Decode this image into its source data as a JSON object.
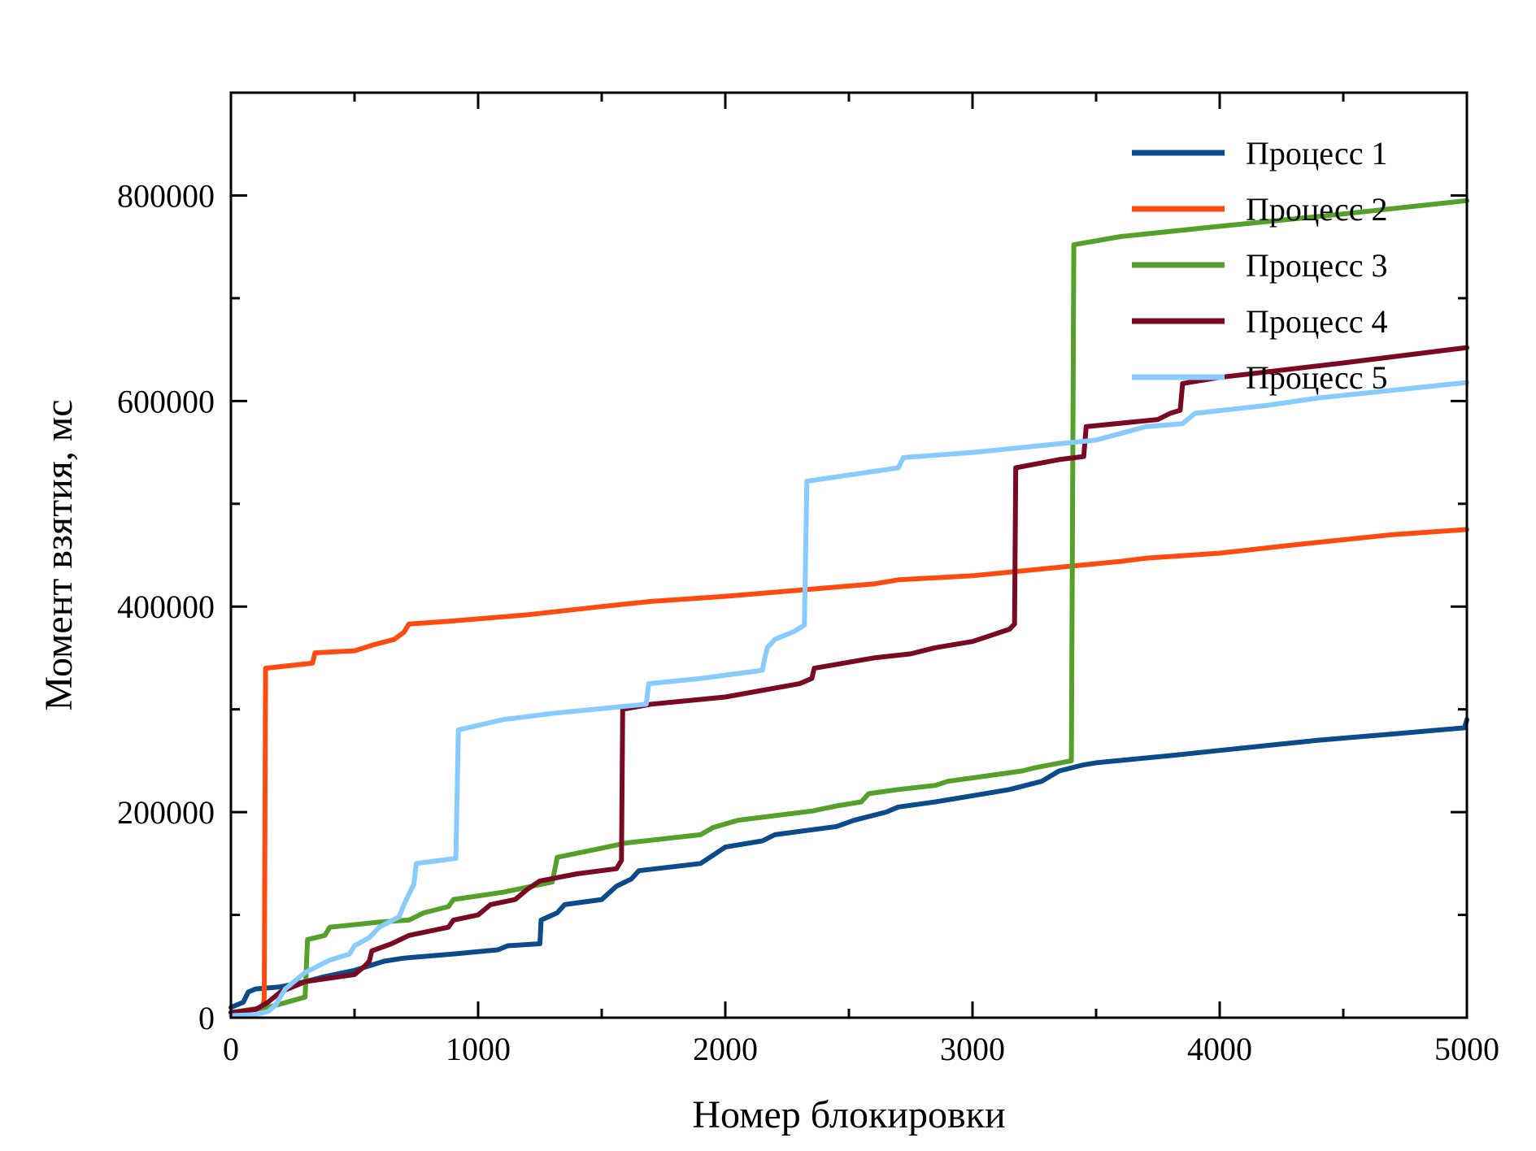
{
  "chart_data": {
    "type": "line",
    "title": "",
    "xlabel": "Номер блокировки",
    "ylabel": "Момент взятия, мс",
    "xlim": [
      0,
      5000
    ],
    "ylim": [
      0,
      900000
    ],
    "xticks": [
      0,
      1000,
      2000,
      3000,
      4000,
      5000
    ],
    "xtick_labels": [
      "0",
      "1000",
      "2000",
      "3000",
      "4000",
      "5000"
    ],
    "xminor": [
      500,
      1500,
      2500,
      3500,
      4500
    ],
    "yticks": [
      0,
      200000,
      400000,
      600000,
      800000
    ],
    "ytick_labels": [
      "0",
      "200000",
      "400000",
      "600000",
      "800000"
    ],
    "yminor": [
      100000,
      300000,
      500000,
      700000
    ],
    "grid": false,
    "legend_position": "top-right",
    "series": [
      {
        "name": "Процесс 1",
        "color": "#0b4a8b",
        "points": [
          [
            0,
            10000
          ],
          [
            50,
            15000
          ],
          [
            70,
            25000
          ],
          [
            100,
            28000
          ],
          [
            200,
            30000
          ],
          [
            300,
            35000
          ],
          [
            380,
            40000
          ],
          [
            500,
            46000
          ],
          [
            620,
            55000
          ],
          [
            700,
            58000
          ],
          [
            900,
            62000
          ],
          [
            1080,
            66000
          ],
          [
            1120,
            70000
          ],
          [
            1250,
            72000
          ],
          [
            1255,
            95000
          ],
          [
            1320,
            102000
          ],
          [
            1350,
            110000
          ],
          [
            1500,
            115000
          ],
          [
            1560,
            128000
          ],
          [
            1620,
            135000
          ],
          [
            1650,
            143000
          ],
          [
            1900,
            150000
          ],
          [
            1950,
            158000
          ],
          [
            2000,
            166000
          ],
          [
            2150,
            172000
          ],
          [
            2200,
            178000
          ],
          [
            2450,
            186000
          ],
          [
            2520,
            192000
          ],
          [
            2650,
            200000
          ],
          [
            2700,
            205000
          ],
          [
            2850,
            210000
          ],
          [
            3000,
            216000
          ],
          [
            3150,
            222000
          ],
          [
            3280,
            230000
          ],
          [
            3350,
            240000
          ],
          [
            3450,
            246000
          ],
          [
            3500,
            248000
          ],
          [
            3800,
            255000
          ],
          [
            4000,
            260000
          ],
          [
            4200,
            265000
          ],
          [
            4400,
            270000
          ],
          [
            4700,
            276000
          ],
          [
            4990,
            282000
          ],
          [
            5000,
            290000
          ]
        ]
      },
      {
        "name": "Процесс 2",
        "color": "#ff4a10",
        "points": [
          [
            0,
            5000
          ],
          [
            130,
            10000
          ],
          [
            135,
            20000
          ],
          [
            140,
            340000
          ],
          [
            330,
            345000
          ],
          [
            340,
            355000
          ],
          [
            500,
            357000
          ],
          [
            580,
            363000
          ],
          [
            660,
            368000
          ],
          [
            700,
            375000
          ],
          [
            720,
            383000
          ],
          [
            900,
            386000
          ],
          [
            1200,
            392000
          ],
          [
            1500,
            400000
          ],
          [
            1700,
            405000
          ],
          [
            2000,
            410000
          ],
          [
            2300,
            416000
          ],
          [
            2600,
            422000
          ],
          [
            2700,
            426000
          ],
          [
            3000,
            430000
          ],
          [
            3300,
            437000
          ],
          [
            3600,
            444000
          ],
          [
            3700,
            447000
          ],
          [
            4000,
            452000
          ],
          [
            4300,
            460000
          ],
          [
            4500,
            465000
          ],
          [
            4700,
            470000
          ],
          [
            5000,
            475000
          ]
        ]
      },
      {
        "name": "Процесс 3",
        "color": "#55a02a",
        "points": [
          [
            0,
            5000
          ],
          [
            150,
            10000
          ],
          [
            300,
            20000
          ],
          [
            310,
            76000
          ],
          [
            380,
            80000
          ],
          [
            400,
            88000
          ],
          [
            600,
            93000
          ],
          [
            720,
            95000
          ],
          [
            780,
            102000
          ],
          [
            880,
            108000
          ],
          [
            900,
            115000
          ],
          [
            1100,
            122000
          ],
          [
            1300,
            132000
          ],
          [
            1320,
            156000
          ],
          [
            1500,
            165000
          ],
          [
            1600,
            170000
          ],
          [
            1900,
            178000
          ],
          [
            1950,
            185000
          ],
          [
            2050,
            192000
          ],
          [
            2150,
            195000
          ],
          [
            2350,
            201000
          ],
          [
            2450,
            206000
          ],
          [
            2550,
            210000
          ],
          [
            2580,
            218000
          ],
          [
            2700,
            222000
          ],
          [
            2850,
            226000
          ],
          [
            2900,
            230000
          ],
          [
            3050,
            235000
          ],
          [
            3200,
            240000
          ],
          [
            3250,
            243000
          ],
          [
            3400,
            250000
          ],
          [
            3410,
            752000
          ],
          [
            3600,
            760000
          ],
          [
            4000,
            770000
          ],
          [
            4500,
            782000
          ],
          [
            5000,
            795000
          ]
        ]
      },
      {
        "name": "Процесс 4",
        "color": "#7a0a24",
        "points": [
          [
            0,
            5000
          ],
          [
            100,
            8000
          ],
          [
            150,
            15000
          ],
          [
            200,
            25000
          ],
          [
            250,
            30000
          ],
          [
            300,
            35000
          ],
          [
            500,
            42000
          ],
          [
            540,
            50000
          ],
          [
            560,
            55000
          ],
          [
            570,
            65000
          ],
          [
            650,
            72000
          ],
          [
            720,
            80000
          ],
          [
            880,
            88000
          ],
          [
            900,
            95000
          ],
          [
            1000,
            100000
          ],
          [
            1050,
            110000
          ],
          [
            1150,
            115000
          ],
          [
            1200,
            125000
          ],
          [
            1250,
            133000
          ],
          [
            1400,
            140000
          ],
          [
            1560,
            145000
          ],
          [
            1580,
            153000
          ],
          [
            1585,
            300000
          ],
          [
            1700,
            305000
          ],
          [
            2000,
            312000
          ],
          [
            2300,
            325000
          ],
          [
            2350,
            330000
          ],
          [
            2360,
            340000
          ],
          [
            2600,
            350000
          ],
          [
            2750,
            354000
          ],
          [
            2850,
            360000
          ],
          [
            3000,
            366000
          ],
          [
            3050,
            370000
          ],
          [
            3150,
            378000
          ],
          [
            3170,
            383000
          ],
          [
            3175,
            535000
          ],
          [
            3350,
            543000
          ],
          [
            3450,
            546000
          ],
          [
            3460,
            575000
          ],
          [
            3750,
            582000
          ],
          [
            3800,
            588000
          ],
          [
            3840,
            591000
          ],
          [
            3850,
            617000
          ],
          [
            4000,
            623000
          ],
          [
            4500,
            637000
          ],
          [
            5000,
            652000
          ]
        ]
      },
      {
        "name": "Процесс 5",
        "color": "#87cbff",
        "points": [
          [
            0,
            2000
          ],
          [
            100,
            3000
          ],
          [
            150,
            6000
          ],
          [
            180,
            12000
          ],
          [
            200,
            20000
          ],
          [
            220,
            28000
          ],
          [
            300,
            44000
          ],
          [
            350,
            50000
          ],
          [
            400,
            56000
          ],
          [
            480,
            62000
          ],
          [
            500,
            70000
          ],
          [
            560,
            78000
          ],
          [
            600,
            88000
          ],
          [
            680,
            98000
          ],
          [
            700,
            110000
          ],
          [
            740,
            130000
          ],
          [
            750,
            150000
          ],
          [
            910,
            155000
          ],
          [
            920,
            280000
          ],
          [
            1100,
            290000
          ],
          [
            1300,
            296000
          ],
          [
            1680,
            305000
          ],
          [
            1690,
            325000
          ],
          [
            1900,
            330000
          ],
          [
            2150,
            338000
          ],
          [
            2160,
            350000
          ],
          [
            2170,
            360000
          ],
          [
            2200,
            368000
          ],
          [
            2280,
            376000
          ],
          [
            2320,
            382000
          ],
          [
            2330,
            522000
          ],
          [
            2700,
            535000
          ],
          [
            2720,
            545000
          ],
          [
            3000,
            550000
          ],
          [
            3500,
            562000
          ],
          [
            3700,
            575000
          ],
          [
            3850,
            578000
          ],
          [
            3900,
            588000
          ],
          [
            4200,
            596000
          ],
          [
            4400,
            603000
          ],
          [
            5000,
            618000
          ]
        ]
      }
    ]
  }
}
